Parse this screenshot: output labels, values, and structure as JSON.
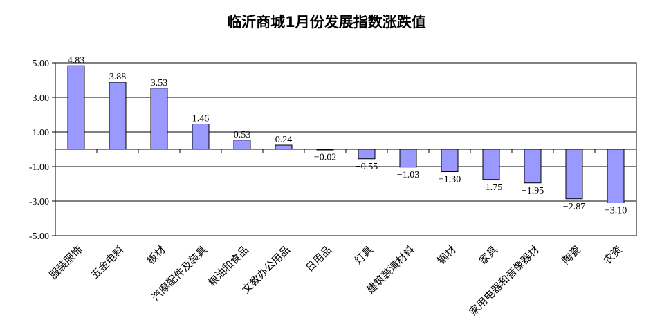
{
  "chart_data": {
    "type": "bar",
    "title": "临沂商城1月份发展指数涨跌值",
    "categories": [
      "服装服饰",
      "五金电料",
      "板材",
      "汽摩配件及装具",
      "粮油和食品",
      "文教办公用品",
      "日用品",
      "灯具",
      "建筑装潢材料",
      "钢材",
      "家具",
      "家用电器和音像器材",
      "陶瓷",
      "农资"
    ],
    "values": [
      4.83,
      3.88,
      3.53,
      1.46,
      0.53,
      0.24,
      -0.02,
      -0.55,
      -1.03,
      -1.3,
      -1.75,
      -1.95,
      -2.87,
      -3.1
    ],
    "value_labels": [
      "4.83",
      "3.88",
      "3.53",
      "1.46",
      "0.53",
      "0.24",
      "−0.02",
      "−0.55",
      "−1.03",
      "−1.30",
      "−1.75",
      "−1.95",
      "−2.87",
      "−3.10"
    ],
    "yticks": [
      5,
      3,
      1,
      -1,
      -3,
      -5
    ],
    "ytick_labels": [
      "5.00",
      "3.00",
      "1.00",
      "-1.00",
      "-3.00",
      "-5.00"
    ],
    "ylim": [
      -5,
      5
    ],
    "bar_color": "#9999ff",
    "grid": true,
    "xlabel": "",
    "ylabel": ""
  }
}
